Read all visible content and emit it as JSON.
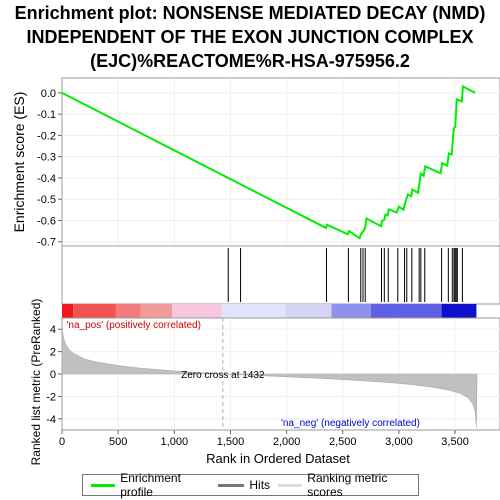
{
  "title_lines": [
    "Enrichment plot: NONSENSE MEDIATED DECAY (NMD)",
    "INDEPENDENT OF THE EXON JUNCTION COMPLEX",
    "(EJC)%REACTOME%R-HSA-975956.2"
  ],
  "colors": {
    "enrichment_line": "#00ee00",
    "hits": "#000000",
    "ranking_fill": "#c0c0c0",
    "grid": "#eeeeee",
    "pos_label": "#cc0000",
    "neg_label": "#0000cc",
    "zero_cross_line": "#b0b0b0"
  },
  "legend": {
    "items": [
      {
        "label": "Enrichment profile",
        "color": "#00ee00"
      },
      {
        "label": "Hits",
        "color": "#777777"
      },
      {
        "label": "Ranking metric scores",
        "color": "#dddddd"
      }
    ]
  },
  "chart_data": [
    {
      "type": "line",
      "name": "enrichment-profile",
      "ylabel": "Enrichment score (ES)",
      "xlim": [
        0,
        3900
      ],
      "ylim": [
        -0.72,
        0.07
      ],
      "yticks": [
        "0.0",
        "-0.1",
        "-0.2",
        "-0.3",
        "-0.4",
        "-0.5",
        "-0.6",
        "-0.7"
      ],
      "grid": true,
      "points": [
        [
          0,
          0.0
        ],
        [
          2350,
          -0.635
        ],
        [
          2360,
          -0.62
        ],
        [
          2545,
          -0.665
        ],
        [
          2555,
          -0.65
        ],
        [
          2650,
          -0.683
        ],
        [
          2665,
          -0.662
        ],
        [
          2690,
          -0.645
        ],
        [
          2700,
          -0.63
        ],
        [
          2710,
          -0.59
        ],
        [
          2840,
          -0.627
        ],
        [
          2850,
          -0.602
        ],
        [
          2870,
          -0.597
        ],
        [
          2880,
          -0.573
        ],
        [
          2900,
          -0.576
        ],
        [
          2910,
          -0.548
        ],
        [
          2980,
          -0.562
        ],
        [
          3000,
          -0.535
        ],
        [
          3040,
          -0.55
        ],
        [
          3055,
          -0.52
        ],
        [
          3065,
          -0.5
        ],
        [
          3080,
          -0.478
        ],
        [
          3110,
          -0.486
        ],
        [
          3120,
          -0.455
        ],
        [
          3170,
          -0.47
        ],
        [
          3185,
          -0.415
        ],
        [
          3195,
          -0.38
        ],
        [
          3220,
          -0.39
        ],
        [
          3235,
          -0.345
        ],
        [
          3370,
          -0.378
        ],
        [
          3385,
          -0.33
        ],
        [
          3430,
          -0.342
        ],
        [
          3445,
          -0.285
        ],
        [
          3470,
          -0.29
        ],
        [
          3480,
          -0.22
        ],
        [
          3490,
          -0.165
        ],
        [
          3500,
          -0.16
        ],
        [
          3510,
          -0.085
        ],
        [
          3515,
          -0.03
        ],
        [
          3560,
          -0.04
        ],
        [
          3570,
          0.03
        ],
        [
          3680,
          0.0
        ]
      ]
    },
    {
      "type": "hits",
      "name": "gene-set-hits",
      "x": [
        1480,
        1590,
        2355,
        2550,
        2660,
        2680,
        2700,
        2845,
        2870,
        2905,
        2990,
        3050,
        3070,
        3115,
        3180,
        3195,
        3230,
        3380,
        3440,
        3475,
        3490,
        3500,
        3510,
        3520,
        3565
      ]
    },
    {
      "type": "area",
      "name": "ranked-list-metric",
      "xlabel": "Rank in Ordered Dataset",
      "ylabel": "Ranked list metric (PreRanked)",
      "xlim": [
        0,
        3900
      ],
      "ylim": [
        -5,
        5
      ],
      "xticks": [
        "0",
        "500",
        "1,000",
        "1,500",
        "2,000",
        "2,500",
        "3,000",
        "3,500"
      ],
      "yticks": [
        "4",
        "2",
        "0",
        "-2",
        "-4"
      ],
      "zero_cross": 1432,
      "zero_cross_label": "Zero cross at 1432",
      "pos_label": "'na_pos' (positively correlated)",
      "neg_label": "'na_neg' (negatively correlated)",
      "points": [
        [
          0,
          4.2
        ],
        [
          10,
          3.4
        ],
        [
          30,
          2.7
        ],
        [
          60,
          2.2
        ],
        [
          100,
          1.85
        ],
        [
          200,
          1.35
        ],
        [
          300,
          1.08
        ],
        [
          500,
          0.75
        ],
        [
          700,
          0.52
        ],
        [
          900,
          0.35
        ],
        [
          1100,
          0.2
        ],
        [
          1300,
          0.08
        ],
        [
          1432,
          0.0
        ],
        [
          1700,
          -0.12
        ],
        [
          2000,
          -0.25
        ],
        [
          2300,
          -0.38
        ],
        [
          2600,
          -0.55
        ],
        [
          2900,
          -0.75
        ],
        [
          3100,
          -0.93
        ],
        [
          3300,
          -1.18
        ],
        [
          3450,
          -1.45
        ],
        [
          3550,
          -1.75
        ],
        [
          3620,
          -2.15
        ],
        [
          3660,
          -2.7
        ],
        [
          3680,
          -3.4
        ],
        [
          3690,
          -4.8
        ],
        [
          3695,
          0
        ]
      ]
    },
    {
      "type": "heatmap",
      "name": "rank-color-bar",
      "x": [
        0,
        100,
        480,
        700,
        980,
        1420,
        1990,
        2400,
        2750,
        3380,
        3690
      ],
      "colors": [
        "#ee1a1a",
        "#f25252",
        "#f47b7b",
        "#f49a9a",
        "#f6c8e0",
        "#e2e2f8",
        "#d4d4f6",
        "#9090ee",
        "#6060e6",
        "#1010cc"
      ]
    }
  ]
}
